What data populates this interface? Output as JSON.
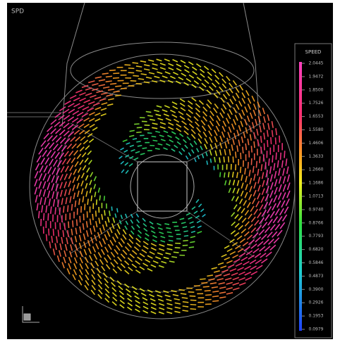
{
  "header": {
    "title": "SPD"
  },
  "legend": {
    "title": "SPEED",
    "labels": [
      "2.0445",
      "1.9472",
      "1.8500",
      "1.7526",
      "1.6553",
      "1.5580",
      "1.4606",
      "1.3633",
      "1.2660",
      "1.1686",
      "1.0713",
      "0.9740",
      "0.8766",
      "0.7793",
      "0.6820",
      "0.5846",
      "0.4873",
      "0.3900",
      "0.2926",
      "0.1953",
      "0.0979"
    ]
  }
}
